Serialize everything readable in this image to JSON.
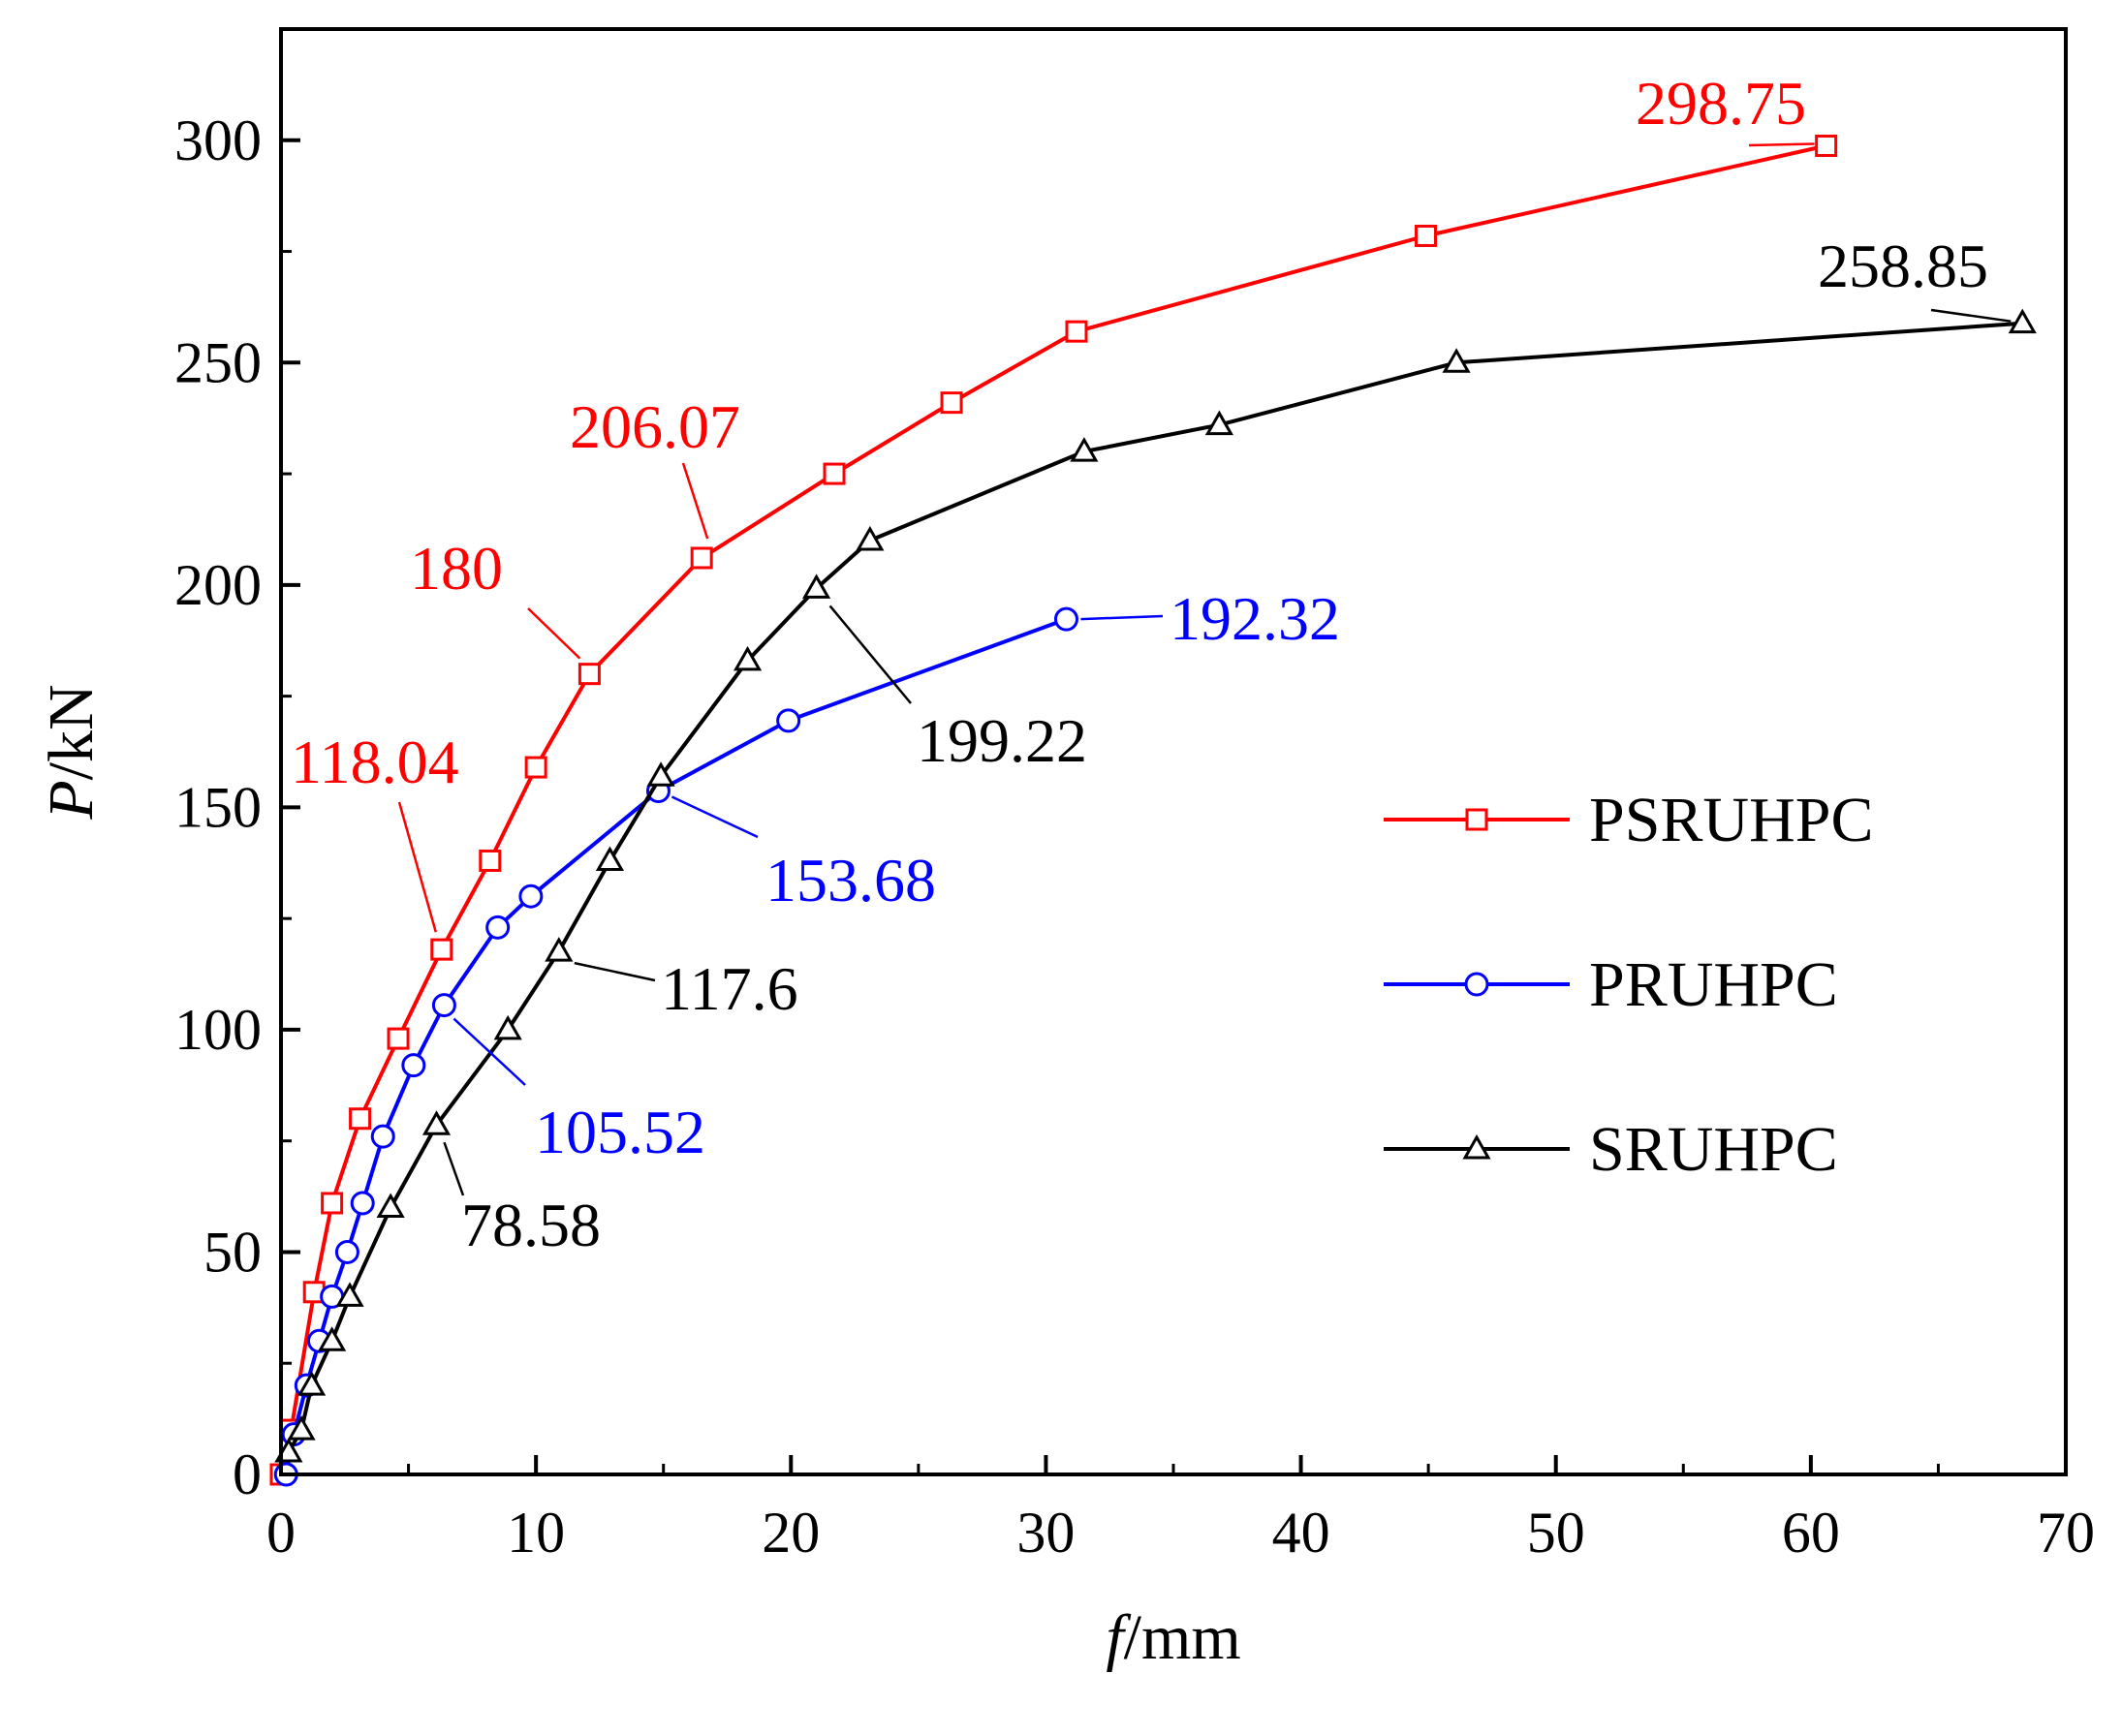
{
  "chart_data": {
    "type": "line",
    "title": "",
    "xlabel": {
      "italic": "f",
      "rest": "/mm"
    },
    "ylabel": {
      "italic": "P",
      "rest": "/kN"
    },
    "xlim": [
      0,
      70
    ],
    "ylim": [
      0,
      325
    ],
    "xticks": [
      0,
      10,
      20,
      30,
      40,
      50,
      60,
      70
    ],
    "yticks": [
      0,
      50,
      100,
      150,
      200,
      250,
      300
    ],
    "legend_position": "middle-right",
    "series": [
      {
        "name": "PSRUHPC",
        "color": "#ff0000",
        "marker": "square",
        "x": [
          0,
          0.4,
          1.3,
          2.0,
          3.1,
          4.6,
          6.3,
          8.2,
          10.0,
          12.1,
          16.5,
          21.7,
          26.3,
          31.2,
          44.9,
          60.6
        ],
        "y": [
          0,
          10,
          41,
          61,
          80,
          98,
          118.04,
          138,
          159,
          180,
          206.07,
          225,
          241,
          257,
          278.5,
          298.75
        ]
      },
      {
        "name": "PRUHPC",
        "color": "#0000ff",
        "marker": "circle",
        "x": [
          0.2,
          0.5,
          1.0,
          1.5,
          2.0,
          2.6,
          3.2,
          4.0,
          5.2,
          6.4,
          8.5,
          9.8,
          14.8,
          19.9,
          30.8
        ],
        "y": [
          0,
          9,
          20,
          30,
          40,
          50,
          61,
          76,
          92,
          105.52,
          123,
          130,
          153.68,
          169.5,
          192.32
        ]
      },
      {
        "name": "SRUHPC",
        "color": "#000000",
        "marker": "triangle",
        "x": [
          0.3,
          0.8,
          1.2,
          2.0,
          2.7,
          4.3,
          6.1,
          8.9,
          10.9,
          12.9,
          14.9,
          18.3,
          21.0,
          23.1,
          31.5,
          36.8,
          46.1,
          68.3
        ],
        "y": [
          5,
          10,
          20,
          30,
          40,
          60,
          78.58,
          100,
          117.6,
          138,
          157,
          183,
          199.22,
          210,
          230,
          236,
          250,
          258.85
        ]
      }
    ],
    "annotations": [
      {
        "text": "298.75",
        "color": "#ff0000",
        "series": "PSRUHPC",
        "point": [
          60.6,
          298.75
        ]
      },
      {
        "text": "206.07",
        "color": "#ff0000",
        "series": "PSRUHPC",
        "point": [
          16.5,
          206.07
        ]
      },
      {
        "text": "180",
        "color": "#ff0000",
        "series": "PSRUHPC",
        "point": [
          12.1,
          180
        ]
      },
      {
        "text": "118.04",
        "color": "#ff0000",
        "series": "PSRUHPC",
        "point": [
          6.3,
          118.04
        ]
      },
      {
        "text": "192.32",
        "color": "#0000ff",
        "series": "PRUHPC",
        "point": [
          30.8,
          192.32
        ]
      },
      {
        "text": "153.68",
        "color": "#0000ff",
        "series": "PRUHPC",
        "point": [
          14.8,
          153.68
        ]
      },
      {
        "text": "105.52",
        "color": "#0000ff",
        "series": "PRUHPC",
        "point": [
          6.4,
          105.52
        ]
      },
      {
        "text": "258.85",
        "color": "#000000",
        "series": "SRUHPC",
        "point": [
          68.3,
          258.85
        ]
      },
      {
        "text": "199.22",
        "color": "#000000",
        "series": "SRUHPC",
        "point": [
          21.0,
          199.22
        ]
      },
      {
        "text": "117.6",
        "color": "#000000",
        "series": "SRUHPC",
        "point": [
          10.9,
          117.6
        ]
      },
      {
        "text": "78.58",
        "color": "#000000",
        "series": "SRUHPC",
        "point": [
          6.1,
          78.58
        ]
      }
    ]
  }
}
